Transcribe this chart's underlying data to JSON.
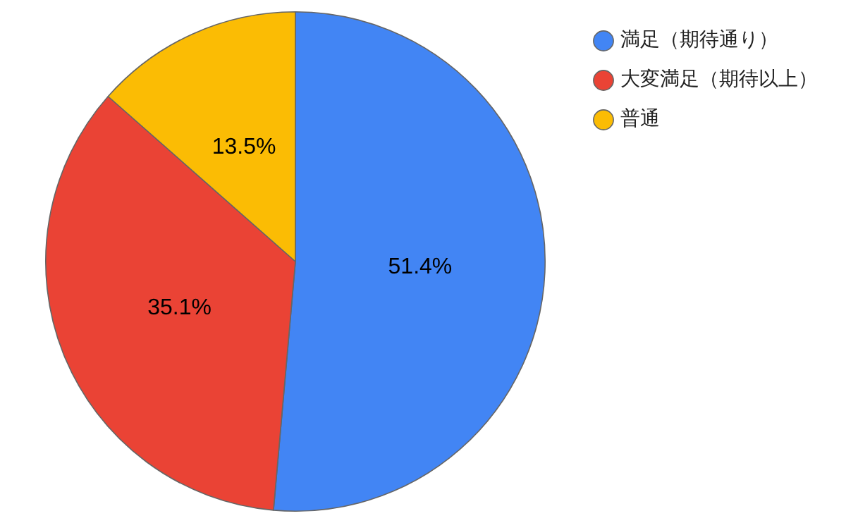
{
  "chart_data": {
    "type": "pie",
    "categories": [
      "満足（期待通り）",
      "大変満足（期待以上）",
      "普通"
    ],
    "values": [
      51.4,
      35.1,
      13.5
    ],
    "colors": [
      "#4285f4",
      "#ea4335",
      "#fbbc04"
    ],
    "value_labels": [
      "51.4%",
      "35.1%",
      "13.5%"
    ],
    "legend": "top right"
  }
}
